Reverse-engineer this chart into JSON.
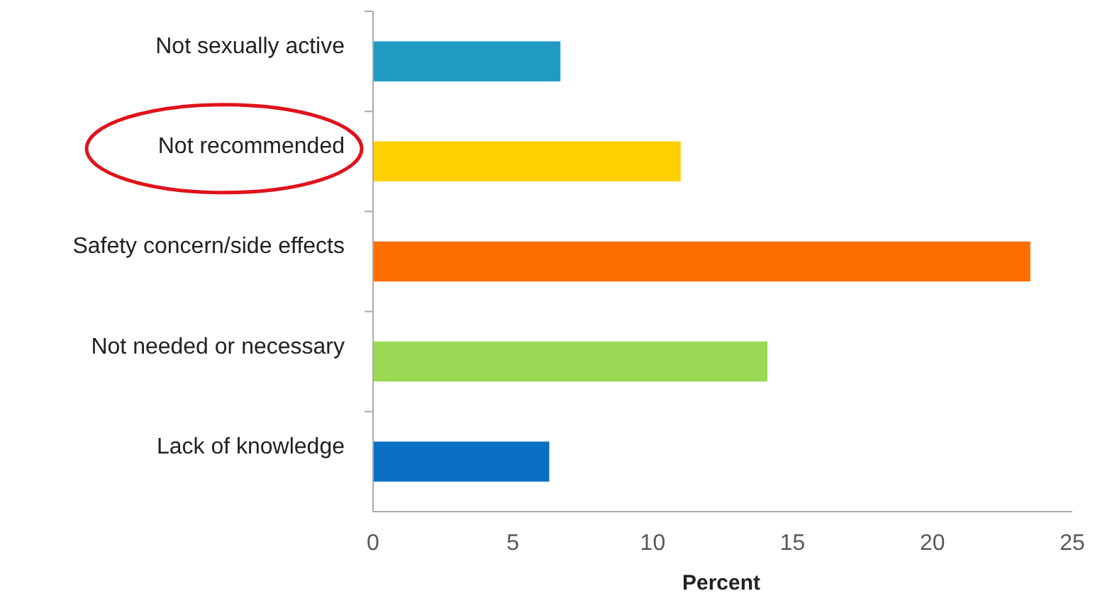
{
  "chart_data": {
    "type": "bar",
    "orientation": "horizontal",
    "xlabel": "Percent",
    "categories": [
      "Not sexually active",
      "Not recommended",
      "Safety concern/side effects",
      "Not needed or necessary",
      "Lack of knowledge"
    ],
    "values": [
      6.7,
      11.0,
      23.5,
      14.1,
      6.3
    ],
    "colors": [
      "#1f9bc4",
      "#ffd000",
      "#ff6f00",
      "#99d954",
      "#0a70c4"
    ],
    "xlim": [
      0,
      25
    ],
    "xticks": [
      0,
      5,
      10,
      15,
      20,
      25
    ],
    "grid": false
  }
}
